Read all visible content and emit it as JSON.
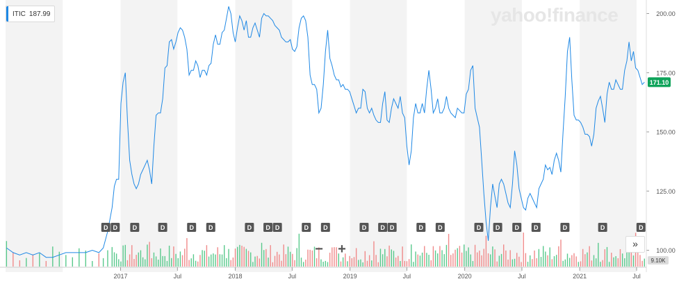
{
  "legend": {
    "symbol": "ITIC",
    "value": "187.99"
  },
  "brand": {
    "logo_text": "yahoo!finance"
  },
  "controls": {
    "zoom_out": "−",
    "zoom_in": "+",
    "more": "»"
  },
  "colors": {
    "line": "#1e88e5",
    "up_volume": "#59c98c",
    "down_volume": "#f08a8a",
    "last_price_badge": "#0fa35a",
    "band": "#f3f3f3"
  },
  "chart_data": {
    "type": "line",
    "title": "",
    "xlabel": "",
    "ylabel": "",
    "ylim": [
      95,
      205
    ],
    "y_ticks": [
      "200.00",
      "175.00",
      "150.00",
      "125.00",
      "100.00"
    ],
    "x_tick_labels": [
      "2017",
      "Jul",
      "2018",
      "Jul",
      "2019",
      "Jul",
      "2020",
      "Jul",
      "2021",
      "Jul"
    ],
    "last_price": "171.10",
    "volume_label": "9.10K",
    "dividend_marker_label": "D",
    "dividend_markers": [
      "2016-11",
      "2016-12",
      "2017-02",
      "2017-05",
      "2017-08",
      "2017-10",
      "2018-02",
      "2018-04",
      "2018-05",
      "2018-08",
      "2018-10",
      "2019-02",
      "2019-04",
      "2019-05",
      "2019-08",
      "2019-10",
      "2020-02",
      "2020-04",
      "2020-06",
      "2020-08",
      "2020-11",
      "2021-03",
      "2021-07"
    ],
    "series": [
      {
        "values": [
          [
            "2016-01-04",
            101
          ],
          [
            "2016-01-25",
            99
          ],
          [
            "2016-02-15",
            98
          ],
          [
            "2016-03-07",
            99
          ],
          [
            "2016-03-28",
            98
          ],
          [
            "2016-04-18",
            99
          ],
          [
            "2016-05-09",
            97
          ],
          [
            "2016-05-30",
            97
          ],
          [
            "2016-06-20",
            98
          ],
          [
            "2016-07-11",
            99
          ],
          [
            "2016-08-01",
            99
          ],
          [
            "2016-08-22",
            99
          ],
          [
            "2016-09-12",
            99
          ],
          [
            "2016-10-03",
            100
          ],
          [
            "2016-10-24",
            99
          ],
          [
            "2016-11-07",
            101
          ],
          [
            "2016-11-21",
            108
          ],
          [
            "2016-12-05",
            118
          ],
          [
            "2016-12-12",
            127
          ],
          [
            "2016-12-19",
            130
          ],
          [
            "2016-12-26",
            130
          ],
          [
            "2017-01-02",
            162
          ],
          [
            "2017-01-09",
            171
          ],
          [
            "2017-01-16",
            175
          ],
          [
            "2017-01-23",
            155
          ],
          [
            "2017-01-30",
            138
          ],
          [
            "2017-02-06",
            132
          ],
          [
            "2017-02-13",
            128
          ],
          [
            "2017-02-20",
            126
          ],
          [
            "2017-02-27",
            128
          ],
          [
            "2017-03-06",
            132
          ],
          [
            "2017-03-13",
            134
          ],
          [
            "2017-03-20",
            136
          ],
          [
            "2017-03-27",
            138
          ],
          [
            "2017-04-03",
            134
          ],
          [
            "2017-04-10",
            128
          ],
          [
            "2017-04-17",
            144
          ],
          [
            "2017-04-24",
            157
          ],
          [
            "2017-05-01",
            158
          ],
          [
            "2017-05-08",
            158
          ],
          [
            "2017-05-15",
            164
          ],
          [
            "2017-05-22",
            177
          ],
          [
            "2017-05-29",
            178
          ],
          [
            "2017-06-05",
            188
          ],
          [
            "2017-06-12",
            189
          ],
          [
            "2017-06-19",
            185
          ],
          [
            "2017-06-26",
            188
          ],
          [
            "2017-07-03",
            192
          ],
          [
            "2017-07-10",
            194
          ],
          [
            "2017-07-17",
            193
          ],
          [
            "2017-07-24",
            190
          ],
          [
            "2017-07-31",
            185
          ],
          [
            "2017-08-07",
            174
          ],
          [
            "2017-08-14",
            176
          ],
          [
            "2017-08-21",
            176
          ],
          [
            "2017-08-28",
            180
          ],
          [
            "2017-09-04",
            178
          ],
          [
            "2017-09-11",
            173
          ],
          [
            "2017-09-18",
            176
          ],
          [
            "2017-09-25",
            176
          ],
          [
            "2017-10-02",
            174
          ],
          [
            "2017-10-09",
            178
          ],
          [
            "2017-10-16",
            179
          ],
          [
            "2017-10-23",
            187
          ],
          [
            "2017-10-30",
            191
          ],
          [
            "2017-11-06",
            187
          ],
          [
            "2017-11-13",
            187
          ],
          [
            "2017-11-20",
            192
          ],
          [
            "2017-11-27",
            193
          ],
          [
            "2017-12-04",
            198
          ],
          [
            "2017-12-11",
            203
          ],
          [
            "2017-12-18",
            200
          ],
          [
            "2017-12-25",
            192
          ],
          [
            "2018-01-01",
            188
          ],
          [
            "2018-01-08",
            194
          ],
          [
            "2018-01-15",
            199
          ],
          [
            "2018-01-22",
            197
          ],
          [
            "2018-01-29",
            193
          ],
          [
            "2018-02-05",
            197
          ],
          [
            "2018-02-12",
            190
          ],
          [
            "2018-02-19",
            190
          ],
          [
            "2018-02-26",
            194
          ],
          [
            "2018-03-05",
            196
          ],
          [
            "2018-03-12",
            193
          ],
          [
            "2018-03-19",
            190
          ],
          [
            "2018-03-26",
            198
          ],
          [
            "2018-04-02",
            200
          ],
          [
            "2018-04-09",
            199
          ],
          [
            "2018-04-16",
            199
          ],
          [
            "2018-04-23",
            198
          ],
          [
            "2018-04-30",
            197
          ],
          [
            "2018-05-07",
            195
          ],
          [
            "2018-05-14",
            194
          ],
          [
            "2018-05-21",
            193
          ],
          [
            "2018-05-28",
            190
          ],
          [
            "2018-06-04",
            189
          ],
          [
            "2018-06-11",
            188
          ],
          [
            "2018-06-18",
            188
          ],
          [
            "2018-06-25",
            189
          ],
          [
            "2018-07-02",
            185
          ],
          [
            "2018-07-09",
            184
          ],
          [
            "2018-07-16",
            186
          ],
          [
            "2018-07-23",
            194
          ],
          [
            "2018-07-30",
            198
          ],
          [
            "2018-08-06",
            199
          ],
          [
            "2018-08-13",
            197
          ],
          [
            "2018-08-20",
            190
          ],
          [
            "2018-08-27",
            174
          ],
          [
            "2018-09-03",
            170
          ],
          [
            "2018-09-10",
            170
          ],
          [
            "2018-09-17",
            168
          ],
          [
            "2018-09-24",
            158
          ],
          [
            "2018-10-01",
            160
          ],
          [
            "2018-10-08",
            170
          ],
          [
            "2018-10-15",
            184
          ],
          [
            "2018-10-22",
            193
          ],
          [
            "2018-10-29",
            181
          ],
          [
            "2018-11-05",
            178
          ],
          [
            "2018-11-12",
            174
          ],
          [
            "2018-11-19",
            172
          ],
          [
            "2018-11-26",
            172
          ],
          [
            "2018-12-03",
            169
          ],
          [
            "2018-12-10",
            170
          ],
          [
            "2018-12-17",
            168
          ],
          [
            "2018-12-24",
            168
          ],
          [
            "2018-12-31",
            167
          ],
          [
            "2019-01-07",
            164
          ],
          [
            "2019-01-14",
            161
          ],
          [
            "2019-01-21",
            158
          ],
          [
            "2019-01-28",
            160
          ],
          [
            "2019-02-04",
            160
          ],
          [
            "2019-02-11",
            168
          ],
          [
            "2019-02-18",
            167
          ],
          [
            "2019-02-25",
            160
          ],
          [
            "2019-03-04",
            158
          ],
          [
            "2019-03-11",
            160
          ],
          [
            "2019-03-18",
            157
          ],
          [
            "2019-03-25",
            155
          ],
          [
            "2019-04-01",
            154
          ],
          [
            "2019-04-08",
            154
          ],
          [
            "2019-04-15",
            162
          ],
          [
            "2019-04-22",
            167
          ],
          [
            "2019-04-29",
            155
          ],
          [
            "2019-05-06",
            154
          ],
          [
            "2019-05-13",
            160
          ],
          [
            "2019-05-20",
            164
          ],
          [
            "2019-05-27",
            162
          ],
          [
            "2019-06-03",
            160
          ],
          [
            "2019-06-10",
            165
          ],
          [
            "2019-06-17",
            158
          ],
          [
            "2019-06-24",
            156
          ],
          [
            "2019-07-01",
            144
          ],
          [
            "2019-07-08",
            136
          ],
          [
            "2019-07-15",
            142
          ],
          [
            "2019-07-22",
            156
          ],
          [
            "2019-07-29",
            162
          ],
          [
            "2019-08-05",
            158
          ],
          [
            "2019-08-12",
            158
          ],
          [
            "2019-08-19",
            162
          ],
          [
            "2019-08-26",
            158
          ],
          [
            "2019-09-02",
            168
          ],
          [
            "2019-09-09",
            176
          ],
          [
            "2019-09-16",
            168
          ],
          [
            "2019-09-23",
            158
          ],
          [
            "2019-09-30",
            160
          ],
          [
            "2019-10-07",
            164
          ],
          [
            "2019-10-14",
            158
          ],
          [
            "2019-10-21",
            158
          ],
          [
            "2019-10-28",
            160
          ],
          [
            "2019-11-04",
            165
          ],
          [
            "2019-11-11",
            160
          ],
          [
            "2019-11-18",
            158
          ],
          [
            "2019-11-25",
            157
          ],
          [
            "2019-12-02",
            156
          ],
          [
            "2019-12-09",
            160
          ],
          [
            "2019-12-16",
            159
          ],
          [
            "2019-12-23",
            158
          ],
          [
            "2019-12-30",
            158
          ],
          [
            "2020-01-06",
            166
          ],
          [
            "2020-01-13",
            168
          ],
          [
            "2020-01-20",
            176
          ],
          [
            "2020-01-27",
            178
          ],
          [
            "2020-02-03",
            160
          ],
          [
            "2020-02-10",
            156
          ],
          [
            "2020-02-17",
            152
          ],
          [
            "2020-02-24",
            138
          ],
          [
            "2020-03-02",
            124
          ],
          [
            "2020-03-09",
            112
          ],
          [
            "2020-03-16",
            104
          ],
          [
            "2020-03-23",
            118
          ],
          [
            "2020-03-30",
            128
          ],
          [
            "2020-04-06",
            123
          ],
          [
            "2020-04-13",
            118
          ],
          [
            "2020-04-20",
            128
          ],
          [
            "2020-04-27",
            130
          ],
          [
            "2020-05-04",
            128
          ],
          [
            "2020-05-11",
            124
          ],
          [
            "2020-05-18",
            120
          ],
          [
            "2020-05-25",
            118
          ],
          [
            "2020-06-01",
            128
          ],
          [
            "2020-06-08",
            142
          ],
          [
            "2020-06-15",
            136
          ],
          [
            "2020-06-22",
            126
          ],
          [
            "2020-06-29",
            122
          ],
          [
            "2020-07-06",
            118
          ],
          [
            "2020-07-13",
            117
          ],
          [
            "2020-07-20",
            122
          ],
          [
            "2020-07-27",
            124
          ],
          [
            "2020-08-03",
            122
          ],
          [
            "2020-08-10",
            120
          ],
          [
            "2020-08-17",
            118
          ],
          [
            "2020-08-24",
            126
          ],
          [
            "2020-08-31",
            128
          ],
          [
            "2020-09-07",
            130
          ],
          [
            "2020-09-14",
            136
          ],
          [
            "2020-09-21",
            134
          ],
          [
            "2020-09-28",
            135
          ],
          [
            "2020-10-05",
            132
          ],
          [
            "2020-10-12",
            138
          ],
          [
            "2020-10-19",
            141
          ],
          [
            "2020-10-26",
            138
          ],
          [
            "2020-11-02",
            133
          ],
          [
            "2020-11-09",
            150
          ],
          [
            "2020-11-16",
            165
          ],
          [
            "2020-11-23",
            184
          ],
          [
            "2020-11-30",
            190
          ],
          [
            "2020-12-07",
            172
          ],
          [
            "2020-12-14",
            157
          ],
          [
            "2020-12-21",
            155
          ],
          [
            "2020-12-28",
            155
          ],
          [
            "2021-01-04",
            154
          ],
          [
            "2021-01-11",
            152
          ],
          [
            "2021-01-18",
            149
          ],
          [
            "2021-01-25",
            149
          ],
          [
            "2021-02-01",
            148
          ],
          [
            "2021-02-08",
            144
          ],
          [
            "2021-02-15",
            149
          ],
          [
            "2021-02-22",
            160
          ],
          [
            "2021-03-01",
            163
          ],
          [
            "2021-03-08",
            165
          ],
          [
            "2021-03-15",
            160
          ],
          [
            "2021-03-22",
            154
          ],
          [
            "2021-03-29",
            166
          ],
          [
            "2021-04-05",
            171
          ],
          [
            "2021-04-12",
            168
          ],
          [
            "2021-04-19",
            168
          ],
          [
            "2021-04-26",
            172
          ],
          [
            "2021-05-03",
            170
          ],
          [
            "2021-05-10",
            168
          ],
          [
            "2021-05-17",
            168
          ],
          [
            "2021-05-24",
            176
          ],
          [
            "2021-05-31",
            180
          ],
          [
            "2021-06-07",
            188
          ],
          [
            "2021-06-14",
            180
          ],
          [
            "2021-06-21",
            184
          ],
          [
            "2021-06-28",
            177
          ],
          [
            "2021-07-05",
            176
          ],
          [
            "2021-07-12",
            173
          ],
          [
            "2021-07-19",
            170
          ],
          [
            "2021-07-26",
            171
          ]
        ]
      }
    ]
  }
}
